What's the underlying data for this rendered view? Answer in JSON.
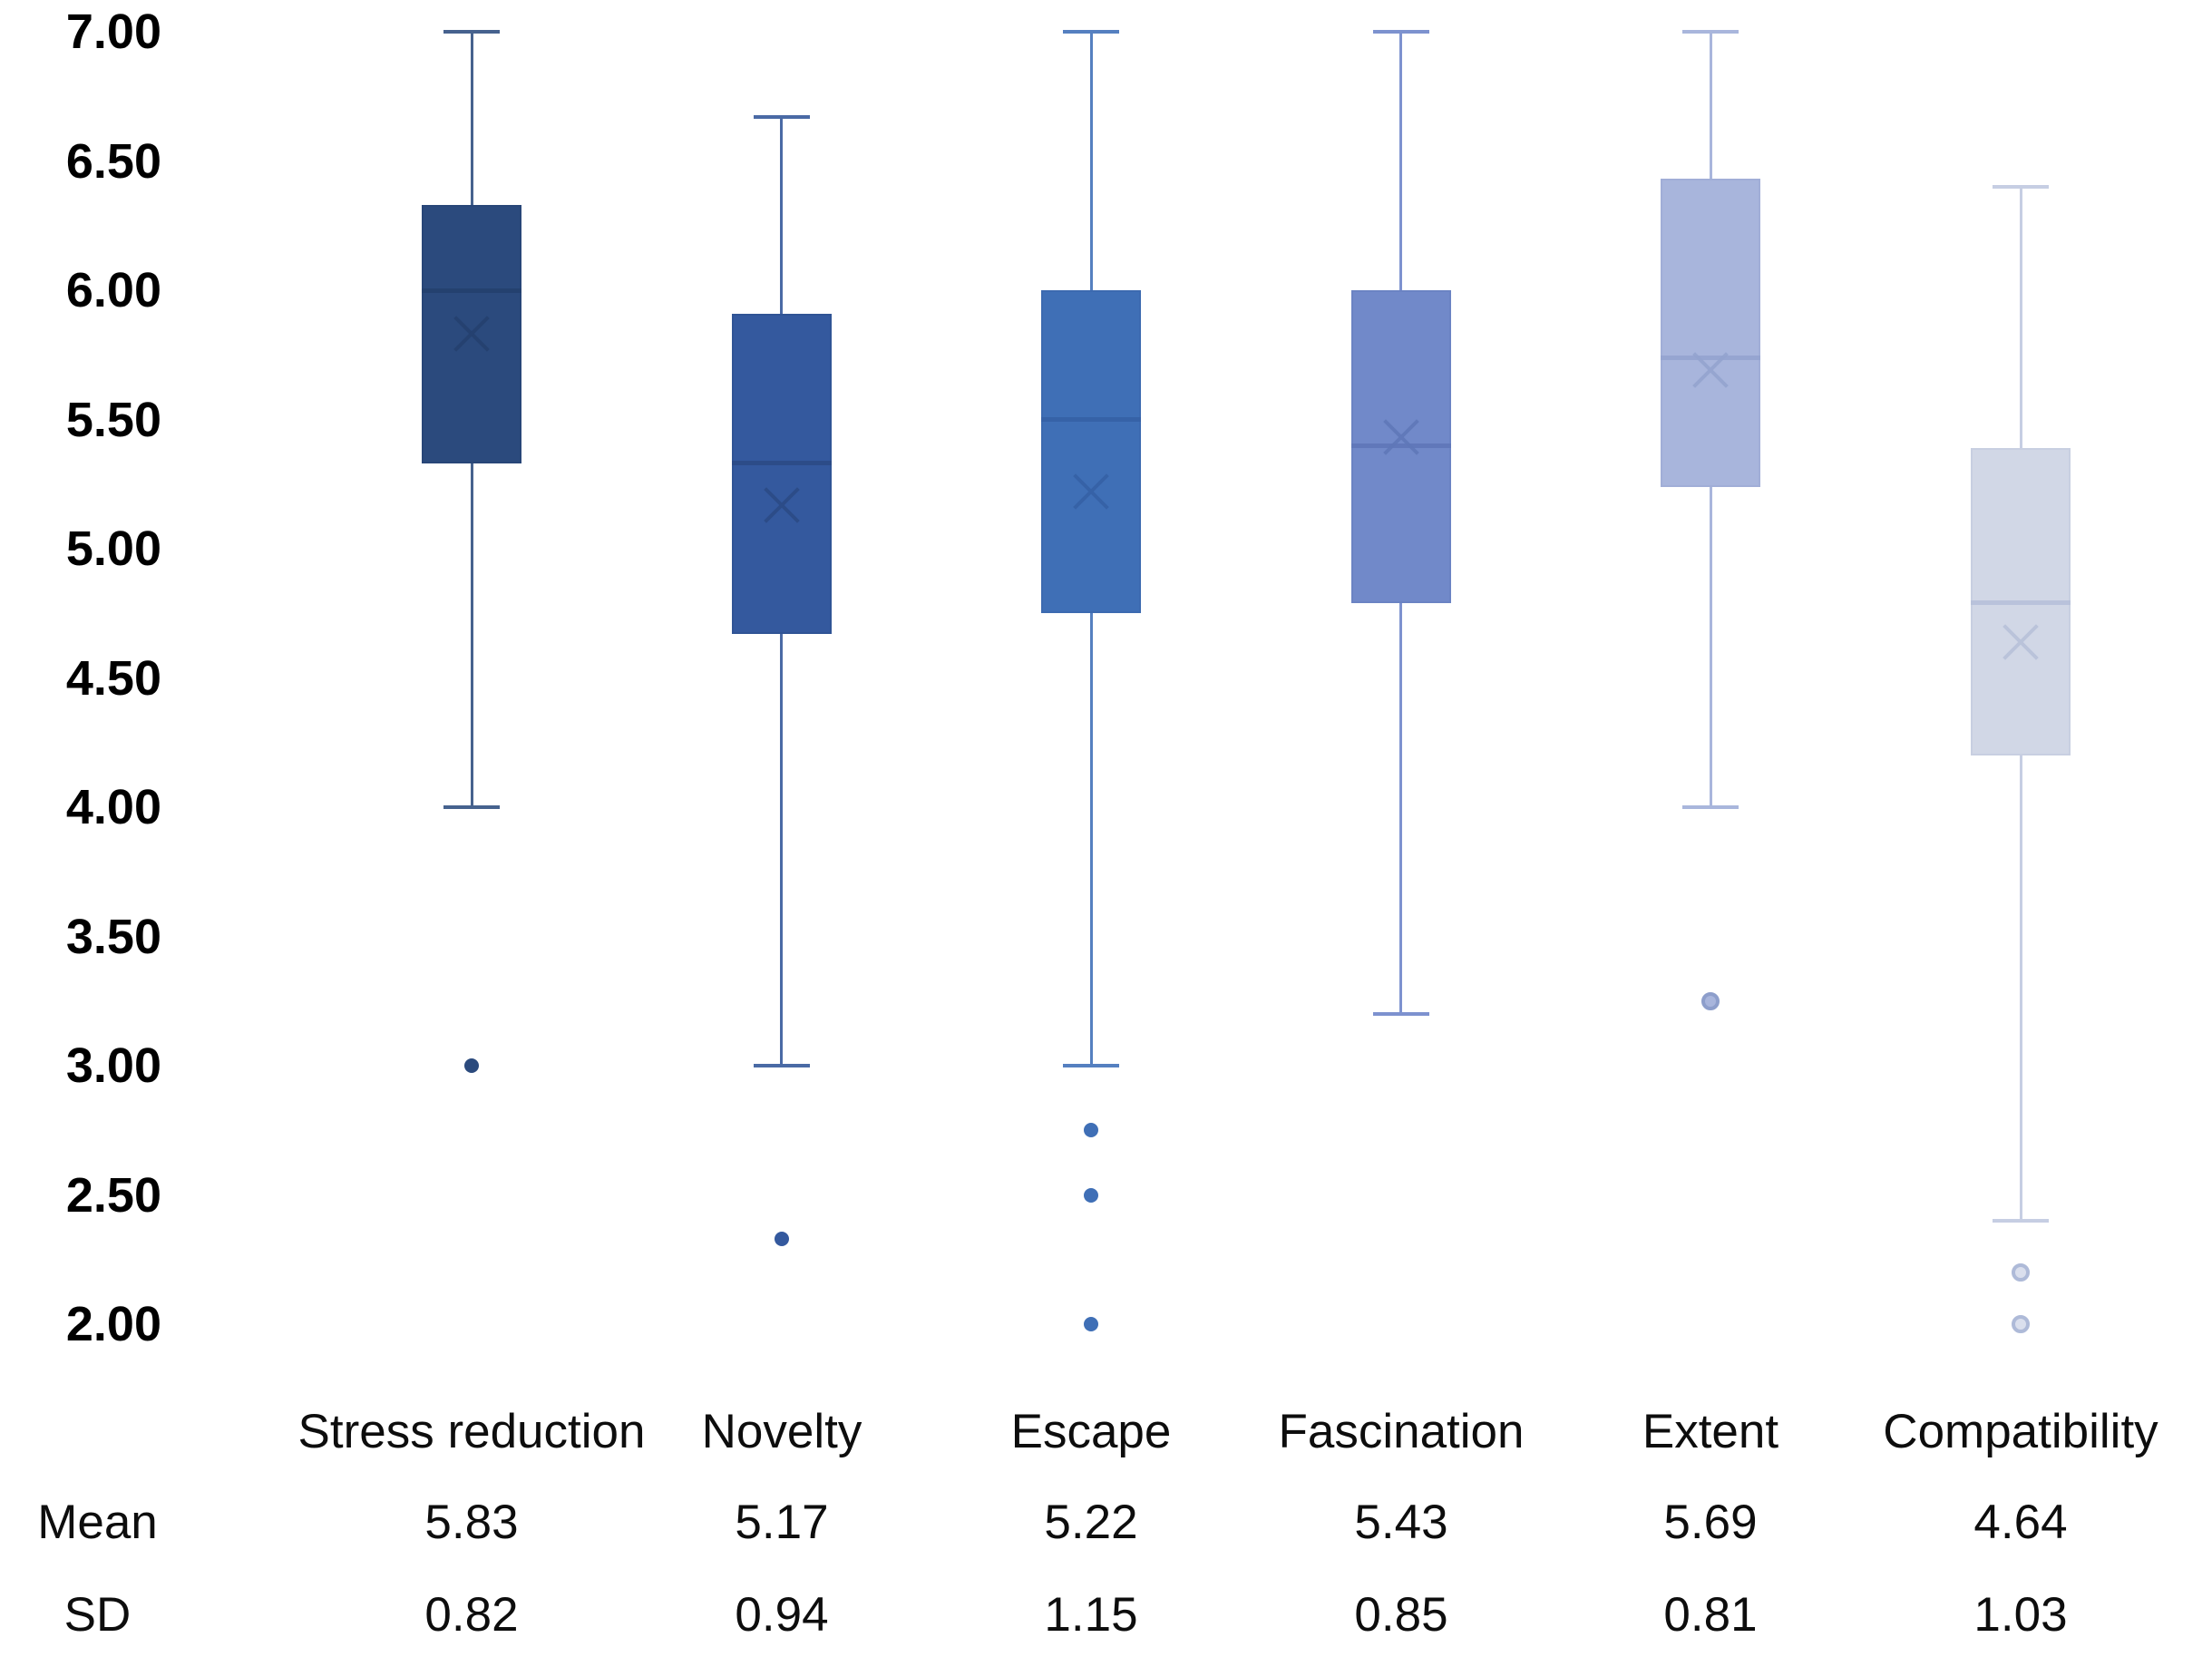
{
  "y_axis": {
    "ticks": [
      {
        "label": "7.00",
        "value": 7.0
      },
      {
        "label": "6.50",
        "value": 6.5
      },
      {
        "label": "6.00",
        "value": 6.0
      },
      {
        "label": "5.50",
        "value": 5.5
      },
      {
        "label": "5.00",
        "value": 5.0
      },
      {
        "label": "4.50",
        "value": 4.5
      },
      {
        "label": "4.00",
        "value": 4.0
      },
      {
        "label": "3.50",
        "value": 3.5
      },
      {
        "label": "3.00",
        "value": 3.0
      },
      {
        "label": "2.50",
        "value": 2.5
      },
      {
        "label": "2.00",
        "value": 2.0
      }
    ]
  },
  "chart_data": {
    "type": "boxplot",
    "title": "",
    "ylim": [
      2.0,
      7.0
    ],
    "y_step": 0.5,
    "gridlines": false,
    "background": "#ffffff",
    "categories": [
      "Stress reduction",
      "Novelty",
      "Escape",
      "Fascination",
      "Extent",
      "Compatibility"
    ],
    "series": [
      {
        "name": "Stress reduction",
        "stats": {
          "whisker_high": 7.0,
          "q3": 6.33,
          "median": 6.0,
          "mean": 5.83,
          "q1": 5.33,
          "whisker_low": 4.0
        },
        "outliers": [
          3.0
        ],
        "outlier_style": "solid",
        "colors": {
          "fill": "#2b4a7d",
          "line": "#24406e",
          "whisker": "#46628e",
          "outlier_fill": "#2b4a7d",
          "outlier_ring": "#2b4a7d"
        }
      },
      {
        "name": "Novelty",
        "stats": {
          "whisker_high": 6.67,
          "q3": 5.91,
          "median": 5.33,
          "mean": 5.17,
          "q1": 4.67,
          "whisker_low": 3.0
        },
        "outliers": [
          2.33
        ],
        "outlier_style": "solid",
        "colors": {
          "fill": "#34599e",
          "line": "#2b4a85",
          "whisker": "#4a6aa5",
          "outlier_fill": "#34599e",
          "outlier_ring": "#34599e"
        }
      },
      {
        "name": "Escape",
        "stats": {
          "whisker_high": 7.0,
          "q3": 6.0,
          "median": 5.5,
          "mean": 5.22,
          "q1": 4.75,
          "whisker_low": 3.0
        },
        "outliers": [
          2.75,
          2.5,
          2.0
        ],
        "outlier_style": "solid",
        "colors": {
          "fill": "#3f6fb6",
          "line": "#3560a5",
          "whisker": "#5580c0",
          "outlier_fill": "#3f6fb6",
          "outlier_ring": "#3f6fb6"
        }
      },
      {
        "name": "Fascination",
        "stats": {
          "whisker_high": 7.0,
          "q3": 6.0,
          "median": 5.4,
          "mean": 5.43,
          "q1": 4.79,
          "whisker_low": 3.2
        },
        "outliers": [],
        "outlier_style": "solid",
        "colors": {
          "fill": "#7189c9",
          "line": "#5f77b8",
          "whisker": "#7d92cf",
          "outlier_fill": "#7189c9",
          "outlier_ring": "#7189c9"
        }
      },
      {
        "name": "Extent",
        "stats": {
          "whisker_high": 7.0,
          "q3": 6.43,
          "median": 5.74,
          "mean": 5.69,
          "q1": 5.24,
          "whisker_low": 4.0
        },
        "outliers": [
          3.25
        ],
        "outlier_style": "ring",
        "colors": {
          "fill": "#a8b5dc",
          "line": "#93a3cf",
          "whisker": "#a9b6dc",
          "outlier_fill": "#a8b5dc",
          "outlier_ring": "#8d9ecb"
        }
      },
      {
        "name": "Compatibility",
        "stats": {
          "whisker_high": 6.4,
          "q3": 5.39,
          "median": 4.79,
          "mean": 4.64,
          "q1": 4.2,
          "whisker_low": 2.4
        },
        "outliers": [
          2.2,
          2.0
        ],
        "outlier_style": "ring",
        "colors": {
          "fill": "#d1d7e6",
          "line": "#b6c0d9",
          "whisker": "#c6cee3",
          "outlier_fill": "#dadfed",
          "outlier_ring": "#aebad8"
        }
      }
    ]
  },
  "table": {
    "row_headers": {
      "mean": "Mean",
      "sd": "SD"
    },
    "columns": [
      {
        "label": "Stress reduction",
        "mean": "5.83",
        "sd": "0.82"
      },
      {
        "label": "Novelty",
        "mean": "5.17",
        "sd": "0.94"
      },
      {
        "label": "Escape",
        "mean": "5.22",
        "sd": "1.15"
      },
      {
        "label": "Fascination",
        "mean": "5.43",
        "sd": "0.85"
      },
      {
        "label": "Extent",
        "mean": "5.69",
        "sd": "0.81"
      },
      {
        "label": "Compatibility",
        "mean": "4.64",
        "sd": "1.03"
      }
    ]
  }
}
